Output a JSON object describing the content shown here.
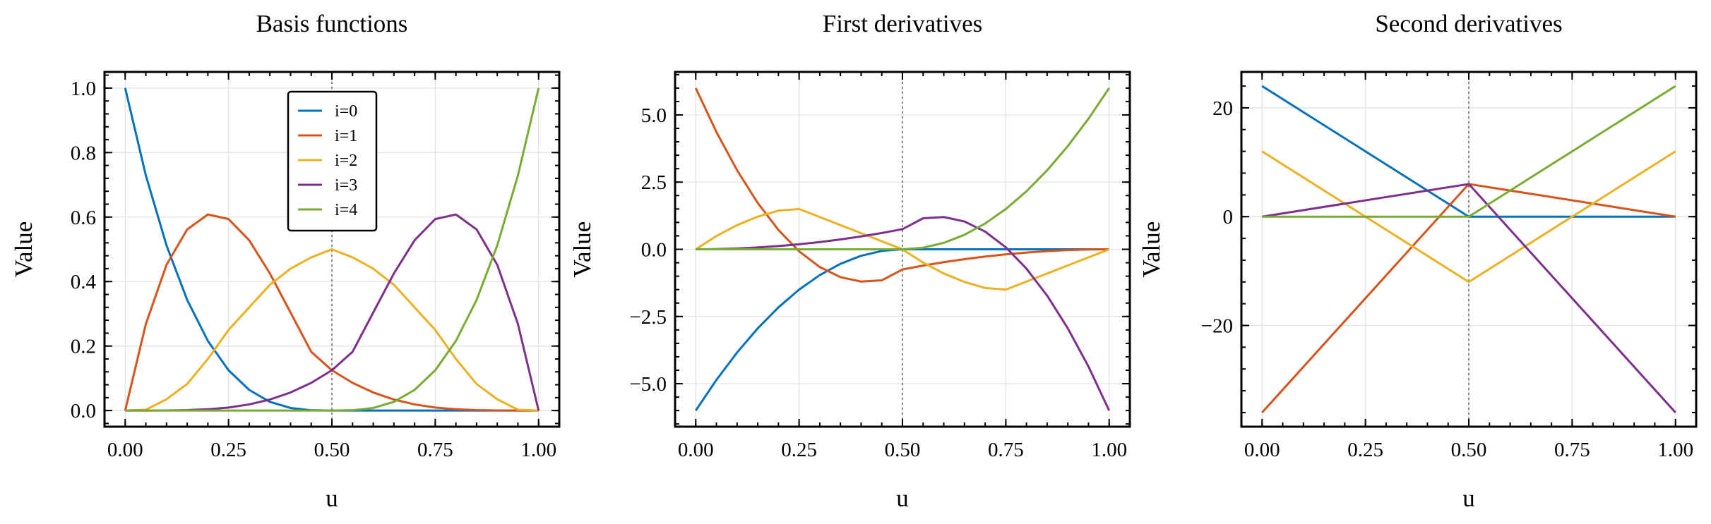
{
  "chart_data": [
    {
      "type": "line",
      "title": "Basis functions",
      "xlabel": "u",
      "ylabel": "Value",
      "xlim": [
        -0.05,
        1.05
      ],
      "ylim": [
        -0.05,
        1.05
      ],
      "xticks": [
        "0.00",
        "0.25",
        "0.50",
        "0.75",
        "1.00"
      ],
      "yticks": [
        "0.0",
        "0.2",
        "0.4",
        "0.6",
        "0.8",
        "1.0"
      ],
      "x": [
        0,
        0.05,
        0.1,
        0.15,
        0.2,
        0.25,
        0.3,
        0.35,
        0.4,
        0.45,
        0.5,
        0.55,
        0.6,
        0.65,
        0.7,
        0.75,
        0.8,
        0.85,
        0.9,
        0.95,
        1
      ],
      "vline_x": 0.5,
      "grid": true,
      "legend": {
        "placement": "upper-center",
        "entries": [
          "i=0",
          "i=1",
          "i=2",
          "i=3",
          "i=4"
        ]
      },
      "series": [
        {
          "name": "i=0",
          "color": "#0072BD",
          "values": [
            1.0,
            0.729,
            0.512,
            0.343,
            0.216,
            0.125,
            0.064,
            0.027,
            0.008,
            0.001,
            0,
            0,
            0,
            0,
            0,
            0,
            0,
            0,
            0,
            0,
            0
          ]
        },
        {
          "name": "i=1",
          "color": "#D95319",
          "values": [
            0,
            0.2685,
            0.452,
            0.5617,
            0.608,
            0.5938,
            0.528,
            0.4252,
            0.304,
            0.1822,
            0.125,
            0.0858,
            0.056,
            0.0342,
            0.019,
            0.0094,
            0.004,
            0.0013,
            0.0003,
            3e-05,
            0
          ]
        },
        {
          "name": "i=2",
          "color": "#EDB120",
          "values": [
            0,
            0.0025,
            0.035,
            0.0825,
            0.16,
            0.25,
            0.32,
            0.39,
            0.44,
            0.475,
            0.5,
            0.475,
            0.44,
            0.39,
            0.32,
            0.25,
            0.16,
            0.0825,
            0.035,
            0.0025,
            0
          ]
        },
        {
          "name": "i=3",
          "color": "#7E2F8E",
          "values": [
            0,
            3e-05,
            0.0003,
            0.0013,
            0.004,
            0.0094,
            0.019,
            0.0342,
            0.056,
            0.0858,
            0.125,
            0.1822,
            0.304,
            0.4252,
            0.528,
            0.5938,
            0.608,
            0.5617,
            0.452,
            0.2685,
            0
          ]
        },
        {
          "name": "i=4",
          "color": "#77AC30",
          "values": [
            0,
            0,
            0,
            0,
            0,
            0,
            0,
            0,
            0,
            0,
            0,
            0.001,
            0.008,
            0.027,
            0.064,
            0.125,
            0.216,
            0.343,
            0.512,
            0.729,
            1.0
          ]
        }
      ]
    },
    {
      "type": "line",
      "title": "First derivatives",
      "xlabel": "u",
      "ylabel": "Value",
      "xlim": [
        -0.05,
        1.05
      ],
      "ylim": [
        -6.6,
        6.6
      ],
      "xticks": [
        "0.00",
        "0.25",
        "0.50",
        "0.75",
        "1.00"
      ],
      "yticks": [
        "−5.0",
        "−2.5",
        "0.0",
        "2.5",
        "5.0"
      ],
      "ytick_values": [
        -5,
        -2.5,
        0,
        2.5,
        5
      ],
      "x": [
        0,
        0.05,
        0.1,
        0.15,
        0.2,
        0.25,
        0.3,
        0.35,
        0.4,
        0.45,
        0.5,
        0.55,
        0.6,
        0.65,
        0.7,
        0.75,
        0.8,
        0.85,
        0.9,
        0.95,
        1
      ],
      "vline_x": 0.5,
      "grid": true,
      "series": [
        {
          "name": "i=0",
          "color": "#0072BD",
          "values": [
            -6.0,
            -4.86,
            -3.84,
            -2.94,
            -2.16,
            -1.5,
            -0.96,
            -0.54,
            -0.24,
            -0.06,
            0,
            0,
            0,
            0,
            0,
            0,
            0,
            0,
            0,
            0,
            0
          ]
        },
        {
          "name": "i=1",
          "color": "#D95319",
          "values": [
            6.0,
            4.365,
            2.94,
            1.725,
            0.72,
            -0.075,
            -0.66,
            -1.035,
            -1.2,
            -1.155,
            -0.75,
            -0.6075,
            -0.48,
            -0.3675,
            -0.27,
            -0.1875,
            -0.12,
            -0.0675,
            -0.03,
            -0.0075,
            0
          ]
        },
        {
          "name": "i=2",
          "color": "#EDB120",
          "values": [
            0,
            0.495,
            0.9,
            1.215,
            1.44,
            1.5,
            1.2,
            0.9,
            0.6,
            0.3,
            0,
            -0.495,
            -0.9,
            -1.215,
            -1.44,
            -1.5,
            -1.2,
            -0.9,
            -0.6,
            -0.3,
            0
          ]
        },
        {
          "name": "i=3",
          "color": "#7E2F8E",
          "values": [
            0,
            0.0075,
            0.03,
            0.0675,
            0.12,
            0.1875,
            0.27,
            0.3675,
            0.48,
            0.6075,
            0.75,
            1.155,
            1.2,
            1.035,
            0.66,
            0.075,
            -0.72,
            -1.725,
            -2.94,
            -4.365,
            -6.0
          ]
        },
        {
          "name": "i=4",
          "color": "#77AC30",
          "values": [
            0,
            0,
            0,
            0,
            0,
            0,
            0,
            0,
            0,
            0,
            0,
            0.06,
            0.24,
            0.54,
            0.96,
            1.5,
            2.16,
            2.94,
            3.84,
            4.86,
            6.0
          ]
        }
      ]
    },
    {
      "type": "line",
      "title": "Second derivatives",
      "xlabel": "u",
      "ylabel": "Value",
      "xlim": [
        -0.05,
        1.05
      ],
      "ylim": [
        -38.6,
        26.6
      ],
      "xticks": [
        "0.00",
        "0.25",
        "0.50",
        "0.75",
        "1.00"
      ],
      "yticks": [
        "−20",
        "0",
        "20"
      ],
      "ytick_values": [
        -20,
        0,
        20
      ],
      "x": [
        0,
        0.5,
        1
      ],
      "vline_x": 0.5,
      "grid": true,
      "series": [
        {
          "name": "i=0",
          "color": "#0072BD",
          "values": [
            24,
            0,
            0
          ]
        },
        {
          "name": "i=1",
          "color": "#D95319",
          "values": [
            -36,
            6,
            0
          ]
        },
        {
          "name": "i=2",
          "color": "#EDB120",
          "values": [
            12,
            -12,
            12
          ]
        },
        {
          "name": "i=3",
          "color": "#7E2F8E",
          "values": [
            0,
            6,
            -36
          ]
        },
        {
          "name": "i=4",
          "color": "#77AC30",
          "values": [
            0,
            0,
            24
          ]
        }
      ]
    }
  ]
}
